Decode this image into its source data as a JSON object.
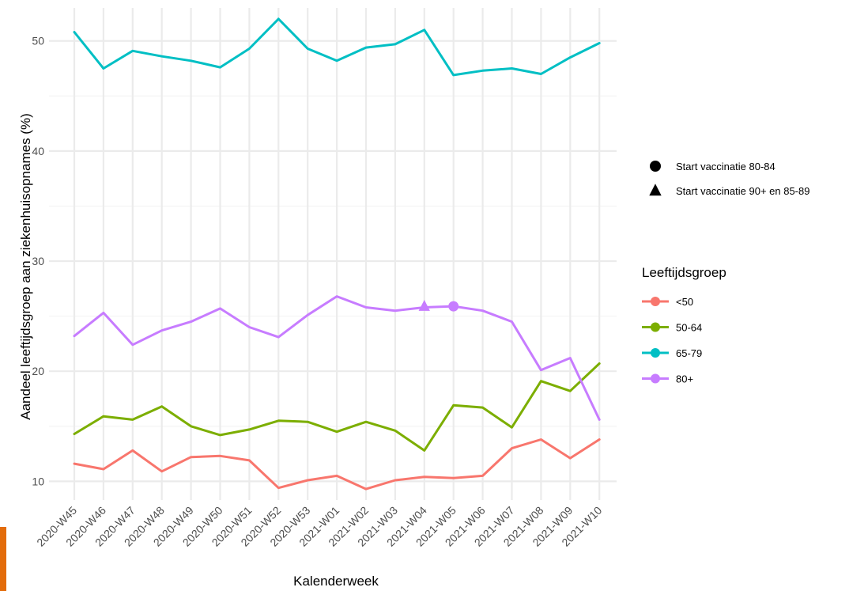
{
  "chart_data": {
    "type": "line",
    "title": "",
    "xlabel": "Kalenderweek",
    "ylabel": "Aandeel leeftijdsgroep aan ziekenhuisopnames (%)",
    "ylim": [
      8.3,
      53.0
    ],
    "yticks": [
      10,
      20,
      30,
      40,
      50
    ],
    "grid": true,
    "categories": [
      "2020-W45",
      "2020-W46",
      "2020-W47",
      "2020-W48",
      "2020-W49",
      "2020-W50",
      "2020-W51",
      "2020-W52",
      "2020-W53",
      "2021-W01",
      "2021-W02",
      "2021-W03",
      "2021-W04",
      "2021-W05",
      "2021-W06",
      "2021-W07",
      "2021-W08",
      "2021-W09",
      "2021-W10"
    ],
    "series": [
      {
        "name": "<50",
        "color": "#f8766d",
        "values": [
          11.6,
          11.1,
          12.8,
          10.9,
          12.2,
          12.3,
          11.9,
          9.4,
          10.1,
          10.5,
          9.3,
          10.1,
          10.4,
          10.3,
          10.5,
          13.0,
          13.8,
          12.1,
          13.8
        ]
      },
      {
        "name": "50-64",
        "color": "#7cae00",
        "values": [
          14.3,
          15.9,
          15.6,
          16.8,
          15.0,
          14.2,
          14.7,
          15.5,
          15.4,
          14.5,
          15.4,
          14.6,
          12.8,
          16.9,
          16.7,
          14.9,
          19.1,
          18.2,
          20.7
        ]
      },
      {
        "name": "65-79",
        "color": "#00bfc4",
        "values": [
          50.8,
          47.5,
          49.1,
          48.6,
          48.2,
          47.6,
          49.3,
          52.0,
          49.3,
          48.2,
          49.4,
          49.7,
          51.0,
          46.9,
          47.3,
          47.5,
          47.0,
          48.5,
          49.8
        ]
      },
      {
        "name": "80+",
        "color": "#c77cff",
        "values": [
          23.2,
          25.3,
          22.4,
          23.7,
          24.5,
          25.7,
          24.0,
          23.1,
          25.1,
          26.8,
          25.8,
          25.5,
          25.8,
          25.9,
          25.5,
          24.5,
          20.1,
          21.2,
          15.6
        ]
      }
    ],
    "markers": [
      {
        "label": "Start vaccinatie 80-84",
        "shape": "circle",
        "x": "2021-W05",
        "y": 25.9,
        "color": "#c77cff"
      },
      {
        "label": "Start vaccinatie 90+ en 85-89",
        "shape": "triangle",
        "x": "2021-W04",
        "y": 25.9,
        "color": "#c77cff"
      }
    ],
    "legend": {
      "placement": "right",
      "title": "Leeftijdsgroep"
    }
  }
}
